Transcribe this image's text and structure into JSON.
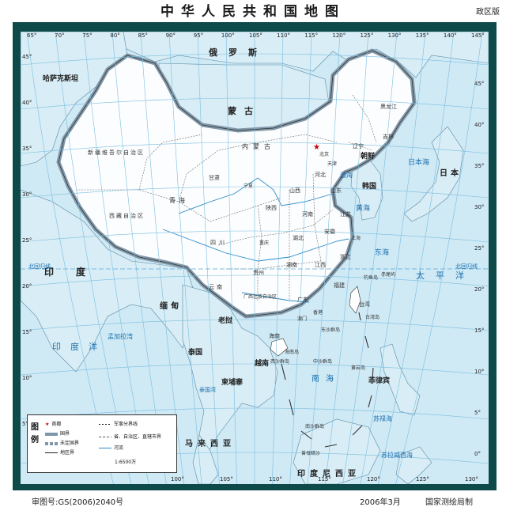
{
  "title": "中华人民共和国地图",
  "edition": "政区版",
  "footer": {
    "approval": "审图号:GS(2006)2040号",
    "date": "2006年3月",
    "publisher": "国家测绘局制"
  },
  "colors": {
    "sea": "#cfe9f5",
    "land_china": "#ffffff",
    "land_other": "#d8edf5",
    "border_halo": "#7f96a8",
    "frame": "#0f4a4a",
    "grid": "#7bbfe0",
    "label_blue": "#1b70b0"
  },
  "graticule": {
    "top_lon_labels": [
      "65°",
      "70°",
      "75°",
      "80°",
      "85°",
      "90°",
      "95°",
      "100°",
      "105°",
      "110°",
      "115°",
      "120°",
      "125°",
      "130°",
      "135°",
      "140°",
      "145°"
    ],
    "bottom_lon_labels": [
      "100°",
      "105°",
      "110°",
      "115°",
      "120°",
      "125°",
      "130°"
    ],
    "left_lat_labels": [
      "45°",
      "40°",
      "35°",
      "30°",
      "25°",
      "20°",
      "15°",
      "10°",
      "5°"
    ],
    "right_lat_labels": [
      "45°",
      "40°",
      "35°",
      "30°",
      "25°",
      "20°",
      "15°",
      "10°",
      "5°",
      "0°"
    ],
    "tropic_label": "北回归线"
  },
  "countries": [
    {
      "name": "哈萨克斯坦",
      "id": "kz"
    },
    {
      "name": "蒙古",
      "id": "mn"
    },
    {
      "name": "俄罗斯",
      "id": "ru"
    },
    {
      "name": "朝鲜",
      "id": "kp"
    },
    {
      "name": "韩国",
      "id": "kr"
    },
    {
      "name": "日本",
      "id": "jp"
    },
    {
      "name": "印度",
      "id": "in"
    },
    {
      "name": "缅甸",
      "id": "mm"
    },
    {
      "name": "老挝",
      "id": "la"
    },
    {
      "name": "泰国",
      "id": "th"
    },
    {
      "name": "越南",
      "id": "vn"
    },
    {
      "name": "柬埔寨",
      "id": "kh"
    },
    {
      "name": "菲律宾",
      "id": "ph"
    },
    {
      "name": "马来西亚",
      "id": "my"
    },
    {
      "name": "印度尼西亚",
      "id": "id"
    }
  ],
  "provinces": [
    {
      "name": "新疆维吾尔自治区"
    },
    {
      "name": "西藏自治区"
    },
    {
      "name": "青海"
    },
    {
      "name": "甘肃"
    },
    {
      "name": "内蒙古"
    },
    {
      "name": "黑龙江"
    },
    {
      "name": "吉林"
    },
    {
      "name": "辽宁"
    },
    {
      "name": "北京"
    },
    {
      "name": "天津"
    },
    {
      "name": "河北"
    },
    {
      "name": "山西"
    },
    {
      "name": "陕西"
    },
    {
      "name": "宁夏"
    },
    {
      "name": "山东"
    },
    {
      "name": "河南"
    },
    {
      "name": "江苏"
    },
    {
      "name": "上海"
    },
    {
      "name": "安徽"
    },
    {
      "name": "湖北"
    },
    {
      "name": "四川"
    },
    {
      "name": "重庆"
    },
    {
      "name": "浙江"
    },
    {
      "name": "江西"
    },
    {
      "name": "湖南"
    },
    {
      "name": "贵州"
    },
    {
      "name": "云南"
    },
    {
      "name": "福建"
    },
    {
      "name": "广西壮族自治区"
    },
    {
      "name": "广东"
    },
    {
      "name": "台湾"
    },
    {
      "name": "香港"
    },
    {
      "name": "澳门"
    },
    {
      "name": "海南"
    }
  ],
  "seas": [
    {
      "name": "渤海"
    },
    {
      "name": "黄海"
    },
    {
      "name": "东海"
    },
    {
      "name": "南海"
    },
    {
      "name": "日本海"
    },
    {
      "name": "太平洋"
    },
    {
      "name": "印度洋"
    },
    {
      "name": "孟加拉湾"
    },
    {
      "name": "苏禄海"
    },
    {
      "name": "苏拉威西海"
    },
    {
      "name": "泰国湾"
    }
  ],
  "islands": [
    {
      "name": "钓鱼岛"
    },
    {
      "name": "赤尾屿"
    },
    {
      "name": "西沙群岛"
    },
    {
      "name": "中沙群岛"
    },
    {
      "name": "东沙群岛"
    },
    {
      "name": "南沙群岛"
    },
    {
      "name": "黄岩岛"
    },
    {
      "name": "曾母暗沙"
    },
    {
      "name": "海南岛"
    },
    {
      "name": "台湾岛"
    }
  ],
  "legend": {
    "title": "图例",
    "items": [
      {
        "label": "首都"
      },
      {
        "label": "国界"
      },
      {
        "label": "未定国界"
      },
      {
        "label": "地区界"
      },
      {
        "label": "军事分界线"
      },
      {
        "label": "省、自治区、直辖市界"
      },
      {
        "label": "河流"
      }
    ],
    "scale": "1:6500万"
  }
}
